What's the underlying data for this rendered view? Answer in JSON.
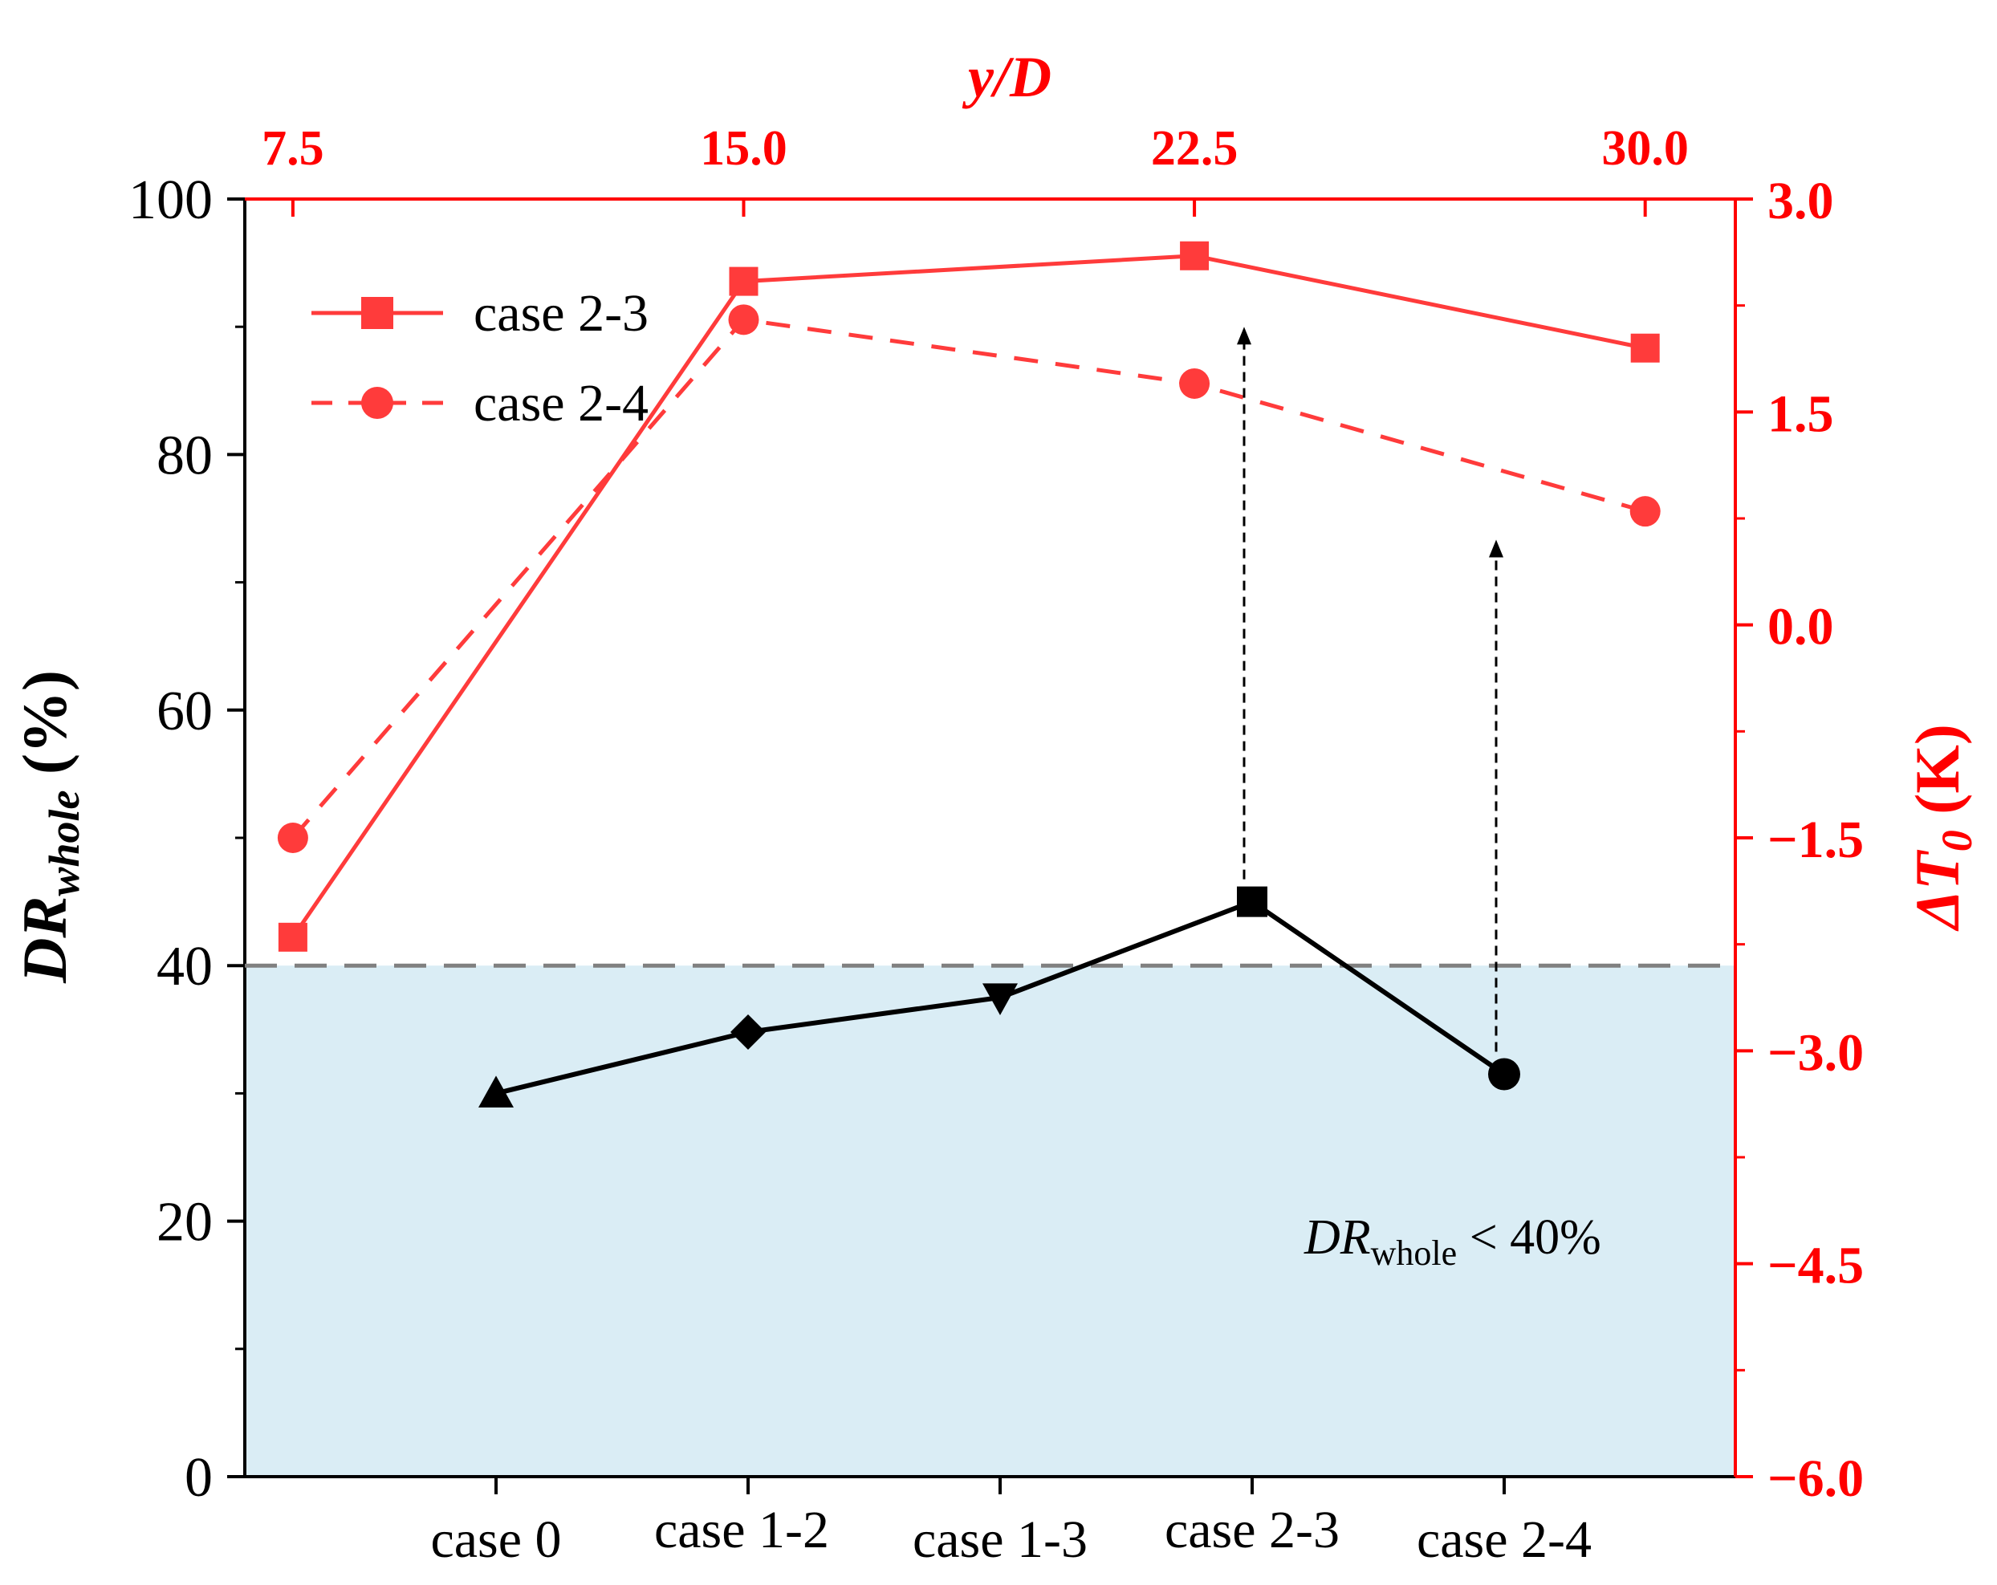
{
  "colors": {
    "black": "#000000",
    "red": "#ff3b3b",
    "axis_red": "#ff0000",
    "shade": "#daedf5",
    "threshold": "#808080"
  },
  "chart_data": {
    "type": "line",
    "bottom_axis": {
      "categories": [
        "case 0",
        "case 1-2",
        "case 1-3",
        "case 2-3",
        "case 2-4"
      ],
      "xlabel": ""
    },
    "left_axis": {
      "label_main": "DR",
      "label_sub": "whole",
      "label_unit": " (%)",
      "ylim": [
        0,
        100
      ],
      "ticks": [
        "0",
        "20",
        "40",
        "60",
        "80",
        "100"
      ],
      "tick_values": [
        0,
        20,
        40,
        60,
        80,
        100
      ]
    },
    "top_axis": {
      "label": "y/D",
      "xlim": [
        6.7,
        31.5
      ],
      "ticks": [
        "7.5",
        "15.0",
        "22.5",
        "30.0"
      ],
      "tick_values": [
        7.5,
        15.0,
        22.5,
        30.0
      ]
    },
    "right_axis": {
      "label_main": "ΔT",
      "label_sub": "0",
      "label_unit": " (K)",
      "ylim": [
        -6.0,
        3.0
      ],
      "ticks": [
        "3.0",
        "1.5",
        "0.0",
        "−1.5",
        "−3.0",
        "−4.5",
        "−6.0"
      ],
      "tick_values": [
        3.0,
        1.5,
        0.0,
        -1.5,
        -3.0,
        -4.5,
        -6.0
      ]
    },
    "dr_series": {
      "name": "DR whole",
      "values": [
        30,
        34.8,
        37.5,
        45,
        31.5
      ],
      "markers": [
        "triangle-up",
        "diamond",
        "triangle-down",
        "square",
        "circle"
      ]
    },
    "delta_series": [
      {
        "name": "case 2-3",
        "x": [
          7.5,
          15.0,
          22.5,
          30.0
        ],
        "y": [
          -2.2,
          2.42,
          2.6,
          1.95
        ],
        "style": "solid",
        "marker": "square"
      },
      {
        "name": "case 2-4",
        "x": [
          7.5,
          15.0,
          22.5,
          30.0
        ],
        "y": [
          -1.5,
          2.15,
          1.7,
          0.8
        ],
        "style": "dashed",
        "marker": "circle"
      }
    ],
    "threshold": {
      "value": 40,
      "label_main": "DR",
      "label_sub": "whole",
      "label_tail": " < 40%"
    },
    "arrows": [
      {
        "category": "case 2-3",
        "from_dr": 45,
        "to_delta": 2.1
      },
      {
        "category": "case 2-4",
        "from_dr": 31.5,
        "to_delta": 0.6
      }
    ],
    "legend": {
      "position": "top-left",
      "entries": [
        "case 2-3",
        "case 2-4"
      ]
    }
  }
}
